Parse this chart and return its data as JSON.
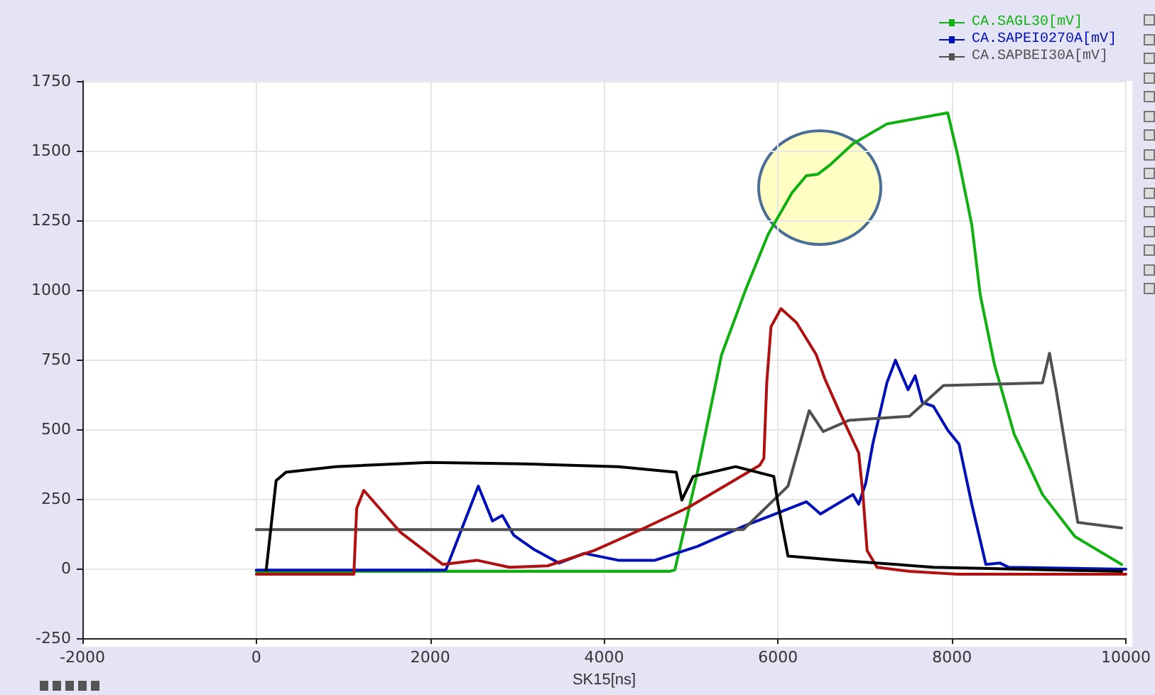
{
  "chart_data": {
    "type": "line",
    "xlabel": "SK15[ns]",
    "xlim": [
      -2000,
      10000
    ],
    "xticks": [
      -2000,
      0,
      2000,
      4000,
      6000,
      8000,
      10000
    ],
    "ylim": [
      -250,
      1750
    ],
    "yticks": [
      -250,
      0,
      250,
      500,
      750,
      1000,
      1250,
      1500,
      1750
    ],
    "grid": true,
    "legend": "top right",
    "line_style": "solid",
    "series": [
      {
        "name": "CA.SAGL30[mV]",
        "color": "#10b010",
        "x": [
          0,
          2000,
          4000,
          4750,
          4813,
          5073,
          5350,
          5626,
          5886,
          6163,
          6325,
          6455,
          6602,
          6862,
          7252,
          7951,
          8065,
          8228,
          8325,
          8488,
          8716,
          9041,
          9414,
          9951
        ],
        "values": [
          -10,
          -10,
          -10,
          -10,
          -5,
          346,
          767,
          1000,
          1200,
          1350,
          1410,
          1415,
          1450,
          1525,
          1596,
          1636,
          1485,
          1234,
          983,
          733,
          482,
          266,
          115,
          15
        ]
      },
      {
        "name": "CA.SAPEI0270A[mV]",
        "color": "#0010b8",
        "x": [
          0,
          1000,
          2179,
          2553,
          2716,
          2829,
          2960,
          3187,
          3480,
          3772,
          4163,
          4585,
          5073,
          5626,
          6049,
          6325,
          6488,
          6862,
          6927,
          7008,
          7089,
          7252,
          7350,
          7496,
          7577,
          7658,
          7788,
          7951,
          8081,
          8228,
          8390,
          8553,
          8651,
          10000
        ],
        "values": [
          -5,
          -5,
          -5,
          296,
          171,
          191,
          120,
          70,
          20,
          55,
          30,
          30,
          80,
          155,
          206,
          240,
          196,
          266,
          231,
          306,
          447,
          667,
          748,
          642,
          692,
          597,
          582,
          497,
          447,
          231,
          15,
          20,
          5,
          -2
        ]
      },
      {
        "name": "CA.SAPBEI30A[mV]",
        "color": "#505050",
        "x": [
          0,
          2000,
          4000,
          5600,
          6114,
          6358,
          6520,
          6813,
          7512,
          7902,
          9041,
          9122,
          9203,
          9447,
          9951
        ],
        "values": [
          140,
          140,
          140,
          140,
          296,
          567,
          492,
          532,
          547,
          657,
          667,
          773,
          632,
          166,
          146
        ]
      },
      {
        "color": "#b01010",
        "x": [
          0,
          1122,
          1154,
          1236,
          1659,
          2146,
          2537,
          2910,
          3350,
          3886,
          4423,
          4976,
          5789,
          5837,
          5870,
          5919,
          6033,
          6212,
          6439,
          6537,
          6700,
          6927,
          6976,
          7024,
          7138,
          7512,
          8065,
          10000
        ],
        "values": [
          -20,
          -20,
          216,
          281,
          130,
          15,
          30,
          5,
          10,
          65,
          140,
          221,
          371,
          396,
          667,
          868,
          933,
          883,
          768,
          682,
          567,
          416,
          266,
          65,
          5,
          -10,
          -20,
          -20
        ]
      },
      {
        "color": "#000000",
        "x": [
          114,
          228,
          341,
          911,
          1984,
          3073,
          4163,
          4829,
          4894,
          5024,
          5512,
          5951,
          6000,
          6114,
          6700,
          7788,
          9951
        ],
        "values": [
          -5,
          316,
          346,
          366,
          381,
          376,
          366,
          346,
          246,
          331,
          366,
          331,
          231,
          45,
          30,
          5,
          -10
        ]
      }
    ]
  }
}
